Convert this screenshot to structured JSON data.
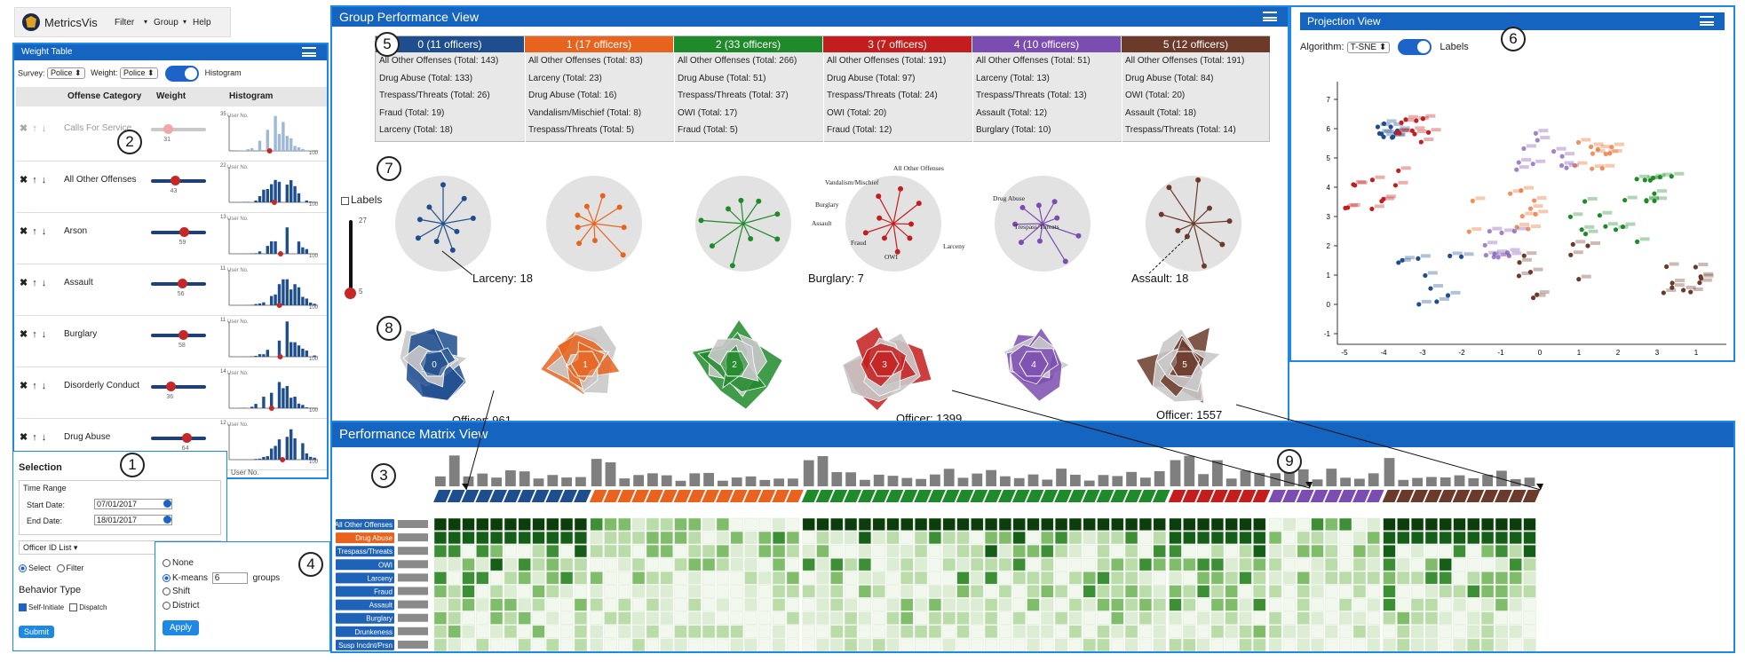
{
  "app": {
    "name": "MetricsVis",
    "menu": [
      "Filter",
      "Group",
      "Help"
    ]
  },
  "weight_table": {
    "title": "Weight Table",
    "survey_label": "Survey:",
    "survey_value": "Police",
    "weight_label": "Weight:",
    "weight_value": "Police",
    "histogram_toggle_label": "Histogram",
    "columns": [
      "Offense Category",
      "Weight",
      "Histogram"
    ],
    "rows": [
      {
        "name": "Calls For Service",
        "weight": "31",
        "faded": true,
        "level": 0.31,
        "axis_top": "35"
      },
      {
        "name": "All Other Offenses",
        "weight": "43",
        "level": 0.43,
        "axis_top": "22"
      },
      {
        "name": "Arson",
        "weight": "59",
        "level": 0.59,
        "axis_top": "13"
      },
      {
        "name": "Assault",
        "weight": "56",
        "level": 0.56,
        "axis_top": "11"
      },
      {
        "name": "Burglary",
        "weight": "58",
        "level": 0.58,
        "axis_top": "11"
      },
      {
        "name": "Disorderly Conduct",
        "weight": "36",
        "level": 0.36,
        "axis_top": "14"
      },
      {
        "name": "Drug Abuse",
        "weight": "64",
        "level": 0.64,
        "axis_top": "12"
      }
    ],
    "hist_axis_text": "User No.",
    "hist_axis_max": "100"
  },
  "selection": {
    "title": "Selection",
    "time_range_label": "Time Range",
    "start_label": "Start Date:",
    "start_value": "07/01/2017",
    "end_label": "End Date:",
    "end_value": "18/01/2017",
    "officer_list_label": "Officer ID List",
    "select_label": "Select",
    "filter_label": "Filter",
    "behavior_title": "Behavior Type",
    "self_initiate_label": "Self-Initiate",
    "dispatch_label": "Dispatch",
    "submit_label": "Submit"
  },
  "grouping": {
    "options": [
      "None",
      "K-means",
      "Shift",
      "District"
    ],
    "selected": "K-means",
    "kmeans_value": "6",
    "groups_label": "groups",
    "apply_label": "Apply"
  },
  "group_performance": {
    "title": "Group Performance View",
    "clusters": [
      {
        "header": "0 (11 officers)",
        "color": "#1f4e8f",
        "items": [
          "All Other Offenses (Total: 143)",
          "Drug Abuse (Total: 133)",
          "Trespass/Threats (Total: 26)",
          "Fraud (Total: 19)",
          "Larceny (Total: 18)"
        ]
      },
      {
        "header": "1 (17 officers)",
        "color": "#e8641e",
        "items": [
          "All Other Offenses (Total: 83)",
          "Larceny (Total: 23)",
          "Drug Abuse (Total: 16)",
          "Vandalism/Mischief (Total: 8)",
          "Trespass/Threats (Total: 5)"
        ]
      },
      {
        "header": "2 (33 officers)",
        "color": "#1f8a2a",
        "items": [
          "All Other Offenses (Total: 266)",
          "Drug Abuse (Total: 51)",
          "Trespass/Threats (Total: 37)",
          "OWI (Total: 17)",
          "Fraud (Total: 5)"
        ]
      },
      {
        "header": "3 (7 officers)",
        "color": "#c41d1d",
        "items": [
          "All Other Offenses (Total: 191)",
          "Drug Abuse (Total: 97)",
          "Trespass/Threats (Total: 24)",
          "OWI (Total: 20)",
          "Fraud (Total: 12)"
        ]
      },
      {
        "header": "4 (10 officers)",
        "color": "#7b4db0",
        "items": [
          "All Other Offenses (Total: 51)",
          "Larceny (Total: 13)",
          "Trespass/Threats (Total: 13)",
          "Assault (Total: 12)",
          "Burglary (Total: 10)"
        ]
      },
      {
        "header": "5 (12 officers)",
        "color": "#6b3a2a",
        "items": [
          "All Other Offenses (Total: 191)",
          "Drug Abuse (Total: 84)",
          "OWI (Total: 20)",
          "Assault (Total: 18)",
          "Trespass/Threats (Total: 14)"
        ]
      }
    ],
    "labels_checkbox": "Labels",
    "slider_max": "27",
    "slider_min": "5",
    "star_labels": [
      "All Other Offenses",
      "Vandalism/Mischief",
      "Drug Abuse",
      "Burglary",
      "Assault",
      "Trespass/Threats",
      "Fraud",
      "Larceny",
      "OWI"
    ],
    "annotations": [
      "Larceny: 18",
      "Burglary: 7",
      "Assault: 18",
      "Officer: 961",
      "Officer: 1399",
      "Officer: 1557"
    ],
    "radar_labels": [
      "0",
      "1",
      "2",
      "3",
      "4",
      "5"
    ]
  },
  "projection": {
    "title": "Projection View",
    "algorithm_label": "Algorithm:",
    "algorithm_value": "T-SNE",
    "labels_toggle": "Labels",
    "y_ticks": [
      "7",
      "6",
      "5",
      "4",
      "3",
      "2",
      "1",
      "0",
      "-1"
    ],
    "x_ticks": [
      "-5",
      "-4",
      "-3",
      "-2",
      "-1",
      "0",
      "1",
      "2",
      "3",
      "1"
    ]
  },
  "matrix": {
    "title": "Performance Matrix View",
    "rows": [
      "All Other Offenses",
      "Drug Abuse",
      "Trespass/Threats",
      "OWI",
      "Larceny",
      "Fraud",
      "Assault",
      "Burglary",
      "Drunkeness",
      "Susp Incdnt/Prsn"
    ],
    "highlight_row": 1
  },
  "annotation_numbers": [
    "1",
    "2",
    "3",
    "4",
    "5",
    "6",
    "7",
    "8",
    "9"
  ],
  "colors": {
    "accent": "#1e88e5",
    "header": "#1565c0",
    "c0": "#1f4e8f",
    "c1": "#e8641e",
    "c2": "#1f8a2a",
    "c3": "#c41d1d",
    "c4": "#7b4db0",
    "c5": "#6b3a2a"
  }
}
